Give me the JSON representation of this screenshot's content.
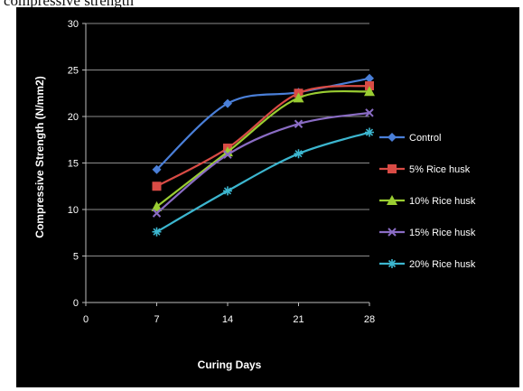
{
  "caption": "compressive strength",
  "chart_data": {
    "type": "line",
    "xlabel": "Curing Days",
    "ylabel": "Compressive Strength (N/mm2)",
    "x": [
      7,
      14,
      21,
      28
    ],
    "x_ticks": [
      "0",
      "7",
      "14",
      "21",
      "28"
    ],
    "y_ticks": [
      "0",
      "5",
      "10",
      "15",
      "20",
      "25",
      "30"
    ],
    "xlim": [
      0,
      28
    ],
    "ylim": [
      0,
      30
    ],
    "grid": "horizontal",
    "legend_position": "right",
    "series": [
      {
        "name": "Control",
        "color": "#4a7fd8",
        "marker": "diamond",
        "values": [
          14.3,
          21.4,
          22.6,
          24.1
        ]
      },
      {
        "name": "5% Rice husk",
        "color": "#d94b45",
        "marker": "square",
        "values": [
          12.5,
          16.6,
          22.5,
          23.3
        ]
      },
      {
        "name": "10% Rice husk",
        "color": "#9acd32",
        "marker": "triangle",
        "values": [
          10.3,
          16.2,
          22.0,
          22.7
        ]
      },
      {
        "name": "15% Rice husk",
        "color": "#8a6cc4",
        "marker": "x",
        "values": [
          9.6,
          15.9,
          19.2,
          20.4
        ]
      },
      {
        "name": "20% Rice husk",
        "color": "#3cb6cf",
        "marker": "star",
        "values": [
          7.6,
          12.0,
          16.0,
          18.3
        ]
      }
    ]
  }
}
